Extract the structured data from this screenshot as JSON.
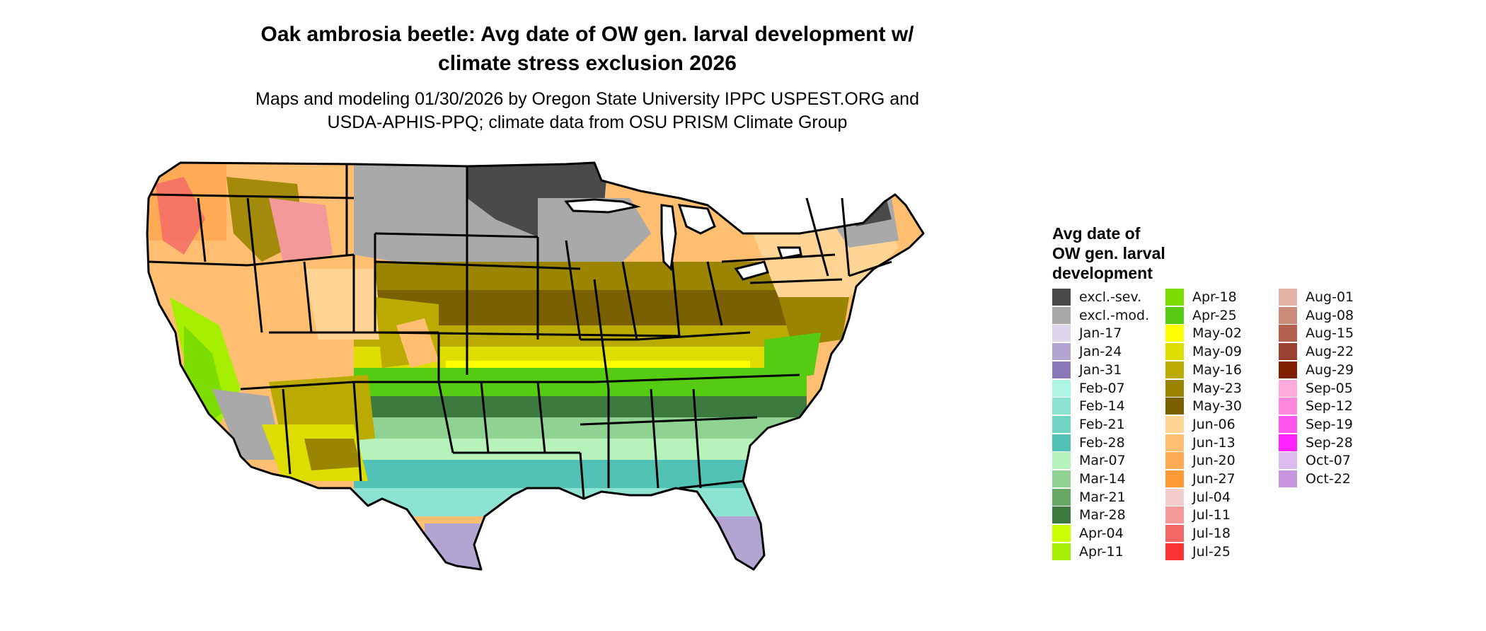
{
  "title_lines": [
    "Oak ambrosia beetle: Avg date of OW gen. larval development w/",
    "climate stress exclusion 2026"
  ],
  "subtitle_lines": [
    "Maps and modeling 01/30/2026 by Oregon State University IPPC USPEST.ORG and",
    "USDA-APHIS-PPQ; climate data from OSU PRISM Climate Group"
  ],
  "legend": {
    "title_lines": [
      "Avg date of",
      "OW gen. larval",
      "development"
    ],
    "entries": [
      {
        "label": "excl.-sev.",
        "color": "#4a4a4a"
      },
      {
        "label": "excl.-mod.",
        "color": "#a9a9a9"
      },
      {
        "label": "Jan-17",
        "color": "#ddd5ec"
      },
      {
        "label": "Jan-24",
        "color": "#b2a5d2"
      },
      {
        "label": "Jan-31",
        "color": "#8a79b8"
      },
      {
        "label": "Feb-07",
        "color": "#aff5e4"
      },
      {
        "label": "Feb-14",
        "color": "#8ce3d1"
      },
      {
        "label": "Feb-21",
        "color": "#6fd2c2"
      },
      {
        "label": "Feb-28",
        "color": "#52c2b4"
      },
      {
        "label": "Mar-07",
        "color": "#b6f2b9"
      },
      {
        "label": "Mar-14",
        "color": "#8fd292"
      },
      {
        "label": "Mar-21",
        "color": "#66a866"
      },
      {
        "label": "Mar-28",
        "color": "#3d7a40"
      },
      {
        "label": "Apr-04",
        "color": "#ccff00"
      },
      {
        "label": "Apr-11",
        "color": "#a6ee00"
      },
      {
        "label": "Apr-18",
        "color": "#7ddd00"
      },
      {
        "label": "Apr-25",
        "color": "#55cc11"
      },
      {
        "label": "May-02",
        "color": "#ffff00"
      },
      {
        "label": "May-09",
        "color": "#dddd00"
      },
      {
        "label": "May-16",
        "color": "#bbaa00"
      },
      {
        "label": "May-23",
        "color": "#9a8400"
      },
      {
        "label": "May-30",
        "color": "#7a6000"
      },
      {
        "label": "Jun-06",
        "color": "#ffd494"
      },
      {
        "label": "Jun-13",
        "color": "#ffbe70"
      },
      {
        "label": "Jun-20",
        "color": "#ffaa55"
      },
      {
        "label": "Jun-27",
        "color": "#ff9933"
      },
      {
        "label": "Jul-04",
        "color": "#f5cccc"
      },
      {
        "label": "Jul-11",
        "color": "#f49999"
      },
      {
        "label": "Jul-18",
        "color": "#f46666"
      },
      {
        "label": "Jul-25",
        "color": "#ff3333"
      },
      {
        "label": "Aug-01",
        "color": "#e6b3a8"
      },
      {
        "label": "Aug-08",
        "color": "#cc8a7a"
      },
      {
        "label": "Aug-15",
        "color": "#b36050"
      },
      {
        "label": "Aug-22",
        "color": "#994030"
      },
      {
        "label": "Aug-29",
        "color": "#802000"
      },
      {
        "label": "Sep-05",
        "color": "#ffaadd"
      },
      {
        "label": "Sep-12",
        "color": "#ff88dd"
      },
      {
        "label": "Sep-19",
        "color": "#ff55ee"
      },
      {
        "label": "Sep-28",
        "color": "#ff22ff"
      },
      {
        "label": "Oct-07",
        "color": "#ddbbee"
      },
      {
        "label": "Oct-22",
        "color": "#c896dc"
      }
    ]
  }
}
